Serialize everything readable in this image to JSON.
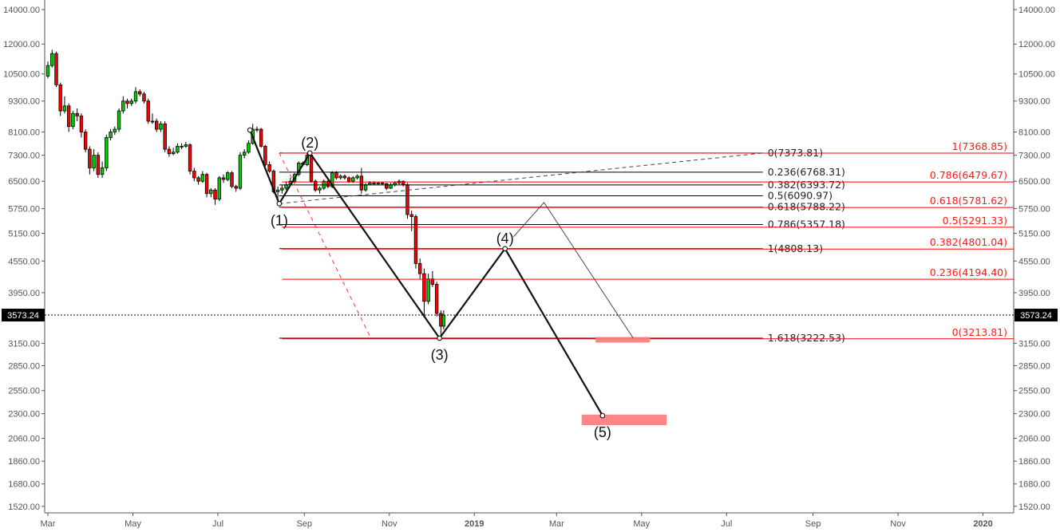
{
  "chart_data": {
    "type": "candlestick",
    "y_scale": "log",
    "ylim": [
      1480,
      14600
    ],
    "y_ticks": [
      "14000.00",
      "12000.00",
      "10500.00",
      "9300.00",
      "8100.00",
      "7300.00",
      "6500.00",
      "5750.00",
      "5150.00",
      "4550.00",
      "3950.00",
      "3150.00",
      "2850.00",
      "2550.00",
      "2300.00",
      "2060.00",
      "1860.00",
      "1680.00",
      "1520.00"
    ],
    "x_ticks": [
      {
        "date": "2018-03-01",
        "label": "Mar",
        "bold": false
      },
      {
        "date": "2018-05-01",
        "label": "May",
        "bold": false
      },
      {
        "date": "2018-07-01",
        "label": "Jul",
        "bold": false
      },
      {
        "date": "2018-09-01",
        "label": "Sep",
        "bold": false
      },
      {
        "date": "2018-11-01",
        "label": "Nov",
        "bold": false
      },
      {
        "date": "2019-01-01",
        "label": "2019",
        "bold": true
      },
      {
        "date": "2019-03-01",
        "label": "Mar",
        "bold": false
      },
      {
        "date": "2019-05-01",
        "label": "May",
        "bold": false
      },
      {
        "date": "2019-07-01",
        "label": "Jul",
        "bold": false
      },
      {
        "date": "2019-09-01",
        "label": "Sep",
        "bold": false
      },
      {
        "date": "2019-11-01",
        "label": "Nov",
        "bold": false
      },
      {
        "date": "2020-01-01",
        "label": "2020",
        "bold": true
      }
    ],
    "last_price": "3573.24",
    "colors": {
      "up": "#00cc00",
      "down": "#ff0000",
      "fib_black": "#000000",
      "fib_red": "#ff0000",
      "box": "#ff8080"
    },
    "candles_columns": [
      "date",
      "open",
      "high",
      "low",
      "close"
    ],
    "candles": [
      [
        "2018-03-01",
        10400,
        11100,
        10300,
        10900
      ],
      [
        "2018-03-04",
        10900,
        11700,
        10800,
        11500
      ],
      [
        "2018-03-07",
        11500,
        11600,
        9900,
        10000
      ],
      [
        "2018-03-10",
        10000,
        10100,
        8700,
        8900
      ],
      [
        "2018-03-13",
        8900,
        9500,
        8800,
        9100
      ],
      [
        "2018-03-16",
        9100,
        9200,
        8100,
        8300
      ],
      [
        "2018-03-19",
        8300,
        8900,
        8200,
        8800
      ],
      [
        "2018-03-22",
        8800,
        9000,
        8500,
        8700
      ],
      [
        "2018-03-25",
        8700,
        8800,
        7900,
        8100
      ],
      [
        "2018-03-28",
        8100,
        8200,
        7400,
        7500
      ],
      [
        "2018-03-31",
        7500,
        7600,
        6700,
        6900
      ],
      [
        "2018-04-03",
        6900,
        7500,
        6800,
        7300
      ],
      [
        "2018-04-06",
        7300,
        7400,
        6600,
        6700
      ],
      [
        "2018-04-09",
        6700,
        7100,
        6600,
        6900
      ],
      [
        "2018-04-12",
        6900,
        8000,
        6800,
        7900
      ],
      [
        "2018-04-15",
        7900,
        8200,
        7800,
        8100
      ],
      [
        "2018-04-18",
        8100,
        8300,
        8000,
        8200
      ],
      [
        "2018-04-21",
        8200,
        9000,
        8100,
        8900
      ],
      [
        "2018-04-24",
        8900,
        9500,
        8800,
        9300
      ],
      [
        "2018-04-27",
        9300,
        9400,
        9000,
        9200
      ],
      [
        "2018-04-30",
        9200,
        9400,
        9100,
        9300
      ],
      [
        "2018-05-03",
        9300,
        9900,
        9200,
        9700
      ],
      [
        "2018-05-06",
        9700,
        9800,
        9500,
        9600
      ],
      [
        "2018-05-09",
        9600,
        9700,
        9200,
        9300
      ],
      [
        "2018-05-12",
        9300,
        9400,
        8400,
        8500
      ],
      [
        "2018-05-15",
        8500,
        8800,
        8400,
        8500
      ],
      [
        "2018-05-18",
        8500,
        8600,
        8100,
        8200
      ],
      [
        "2018-05-21",
        8200,
        8500,
        8100,
        8400
      ],
      [
        "2018-05-24",
        8400,
        8500,
        7400,
        7500
      ],
      [
        "2018-05-27",
        7500,
        7600,
        7250,
        7350
      ],
      [
        "2018-05-30",
        7350,
        7550,
        7300,
        7400
      ],
      [
        "2018-06-02",
        7400,
        7700,
        7350,
        7600
      ],
      [
        "2018-06-05",
        7600,
        7700,
        7500,
        7600
      ],
      [
        "2018-06-08",
        7600,
        7750,
        7550,
        7650
      ],
      [
        "2018-06-11",
        7650,
        7700,
        6700,
        6800
      ],
      [
        "2018-06-14",
        6800,
        6900,
        6500,
        6600
      ],
      [
        "2018-06-17",
        6600,
        6650,
        6400,
        6500
      ],
      [
        "2018-06-20",
        6500,
        6800,
        6450,
        6700
      ],
      [
        "2018-06-23",
        6700,
        6750,
        6050,
        6150
      ],
      [
        "2018-06-26",
        6150,
        6300,
        6050,
        6250
      ],
      [
        "2018-06-29",
        6250,
        6300,
        5850,
        6000
      ],
      [
        "2018-07-02",
        6000,
        6650,
        5950,
        6600
      ],
      [
        "2018-07-05",
        6600,
        6700,
        6450,
        6550
      ],
      [
        "2018-07-08",
        6550,
        6800,
        6500,
        6750
      ],
      [
        "2018-07-11",
        6750,
        6800,
        6300,
        6350
      ],
      [
        "2018-07-14",
        6350,
        6400,
        6200,
        6300
      ],
      [
        "2018-07-17",
        6300,
        7400,
        6250,
        7300
      ],
      [
        "2018-07-20",
        7300,
        7500,
        7200,
        7400
      ],
      [
        "2018-07-23",
        7400,
        7800,
        7350,
        7700
      ],
      [
        "2018-07-26",
        7700,
        8400,
        7650,
        8200
      ],
      [
        "2018-07-29",
        8200,
        8300,
        8100,
        8200
      ],
      [
        "2018-08-01",
        8200,
        8250,
        7550,
        7600
      ],
      [
        "2018-08-04",
        7600,
        7650,
        6950,
        7000
      ],
      [
        "2018-08-07",
        7000,
        7100,
        6750,
        6800
      ],
      [
        "2018-08-10",
        6800,
        6850,
        6150,
        6200
      ],
      [
        "2018-08-13",
        6200,
        6350,
        5900,
        6250
      ],
      [
        "2018-08-16",
        6250,
        6400,
        6150,
        6300
      ],
      [
        "2018-08-19",
        6300,
        6500,
        6250,
        6400
      ],
      [
        "2018-08-22",
        6400,
        6600,
        6350,
        6500
      ],
      [
        "2018-08-25",
        6500,
        6750,
        6450,
        6700
      ],
      [
        "2018-08-28",
        6700,
        7100,
        6650,
        7050
      ],
      [
        "2018-08-31",
        7050,
        7100,
        6950,
        7000
      ],
      [
        "2018-09-03",
        7000,
        7380,
        6950,
        7300
      ],
      [
        "2018-09-06",
        7300,
        7350,
        6450,
        6500
      ],
      [
        "2018-09-09",
        6500,
        6550,
        6200,
        6250
      ],
      [
        "2018-09-12",
        6250,
        6350,
        6150,
        6300
      ],
      [
        "2018-09-15",
        6300,
        6550,
        6250,
        6500
      ],
      [
        "2018-09-18",
        6500,
        6550,
        6300,
        6350
      ],
      [
        "2018-09-21",
        6350,
        6800,
        6300,
        6750
      ],
      [
        "2018-09-24",
        6750,
        6800,
        6550,
        6600
      ],
      [
        "2018-09-27",
        6600,
        6700,
        6550,
        6650
      ],
      [
        "2018-09-30",
        6650,
        6700,
        6550,
        6600
      ],
      [
        "2018-10-03",
        6600,
        6650,
        6450,
        6500
      ],
      [
        "2018-10-06",
        6500,
        6650,
        6450,
        6600
      ],
      [
        "2018-10-09",
        6600,
        6700,
        6550,
        6650
      ],
      [
        "2018-10-12",
        6650,
        6900,
        6150,
        6250
      ],
      [
        "2018-10-15",
        6250,
        6450,
        6200,
        6400
      ],
      [
        "2018-10-18",
        6400,
        6500,
        6380,
        6450
      ],
      [
        "2018-10-21",
        6450,
        6500,
        6400,
        6450
      ],
      [
        "2018-10-24",
        6450,
        6480,
        6400,
        6450
      ],
      [
        "2018-10-27",
        6450,
        6470,
        6380,
        6430
      ],
      [
        "2018-10-30",
        6430,
        6450,
        6250,
        6300
      ],
      [
        "2018-11-02",
        6300,
        6450,
        6280,
        6400
      ],
      [
        "2018-11-05",
        6400,
        6500,
        6350,
        6450
      ],
      [
        "2018-11-08",
        6450,
        6550,
        6400,
        6500
      ],
      [
        "2018-11-11",
        6500,
        6520,
        6350,
        6400
      ],
      [
        "2018-11-14",
        6400,
        6450,
        5500,
        5600
      ],
      [
        "2018-11-17",
        5600,
        5700,
        5200,
        5550
      ],
      [
        "2018-11-20",
        5550,
        5600,
        4400,
        4500
      ],
      [
        "2018-11-23",
        4500,
        4600,
        4200,
        4300
      ],
      [
        "2018-11-26",
        4300,
        4400,
        3550,
        3800
      ],
      [
        "2018-11-29",
        3800,
        4300,
        3750,
        4200
      ],
      [
        "2018-12-02",
        4200,
        4350,
        4050,
        4100
      ],
      [
        "2018-12-05",
        4100,
        4150,
        3550,
        3600
      ],
      [
        "2018-12-08",
        3600,
        3650,
        3230,
        3400
      ],
      [
        "2018-12-10",
        3400,
        3650,
        3350,
        3573.24
      ]
    ],
    "elliott_wave": {
      "start": {
        "date": "2018-07-24",
        "price": 8170
      },
      "points": [
        {
          "label": "(1)",
          "date": "2018-08-14",
          "price": 5880,
          "label_pos": "below"
        },
        {
          "label": "(2)",
          "date": "2018-09-05",
          "price": 7373.81,
          "label_pos": "above"
        },
        {
          "label": "(3)",
          "date": "2018-12-07",
          "price": 3222.53,
          "label_pos": "below"
        },
        {
          "label": "(4)",
          "date": "2019-01-23",
          "price": 4808.13,
          "label_pos": "above"
        },
        {
          "label": "(5)",
          "date": "2019-04-03",
          "price": 2280,
          "label_pos": "below"
        }
      ]
    },
    "alt_path": [
      {
        "date": "2019-01-29",
        "price": 5070
      },
      {
        "date": "2019-02-20",
        "price": 5910
      },
      {
        "date": "2019-04-25",
        "price": 3222.53
      }
    ],
    "trend_dashed": [
      {
        "date": "2018-08-14",
        "price": 5880
      },
      {
        "date": "2019-07-27",
        "price": 7373.81
      }
    ],
    "red_dashed": [
      {
        "date": "2018-08-14",
        "price": 7373.81
      },
      {
        "date": "2018-10-19",
        "price": 3213.81
      }
    ],
    "fib_black": {
      "from": "2018-08-14",
      "to": "2019-07-27",
      "levels": [
        {
          "label": "0(7373.81)",
          "price": 7373.81
        },
        {
          "label": "0.236(6768.31)",
          "price": 6768.31
        },
        {
          "label": "0.382(6393.72)",
          "price": 6393.72
        },
        {
          "label": "0.5(6090.97)",
          "price": 6090.97
        },
        {
          "label": "0.618(5788.22)",
          "price": 5788.22
        },
        {
          "label": "0.786(5357.18)",
          "price": 5357.18
        },
        {
          "label": "1(4808.13)",
          "price": 4808.13
        },
        {
          "label": "1.618(3222.53)",
          "price": 3222.53
        }
      ]
    },
    "fib_red": {
      "from": "2018-08-16",
      "levels": [
        {
          "label": "1(7368.85)",
          "price": 7368.85
        },
        {
          "label": "0.786(6479.67)",
          "price": 6479.67
        },
        {
          "label": "0.618(5781.62)",
          "price": 5781.62
        },
        {
          "label": "0.5(5291.33)",
          "price": 5291.33
        },
        {
          "label": "0.382(4801.04)",
          "price": 4801.04
        },
        {
          "label": "0.236(4194.40)",
          "price": 4194.4
        },
        {
          "label": "0(3213.81)",
          "price": 3213.81
        }
      ]
    },
    "target_boxes": [
      {
        "from": "2019-03-29",
        "to": "2019-05-07",
        "high": 3240,
        "low": 3160
      },
      {
        "from": "2019-03-19",
        "to": "2019-05-19",
        "high": 2290,
        "low": 2185
      }
    ]
  }
}
